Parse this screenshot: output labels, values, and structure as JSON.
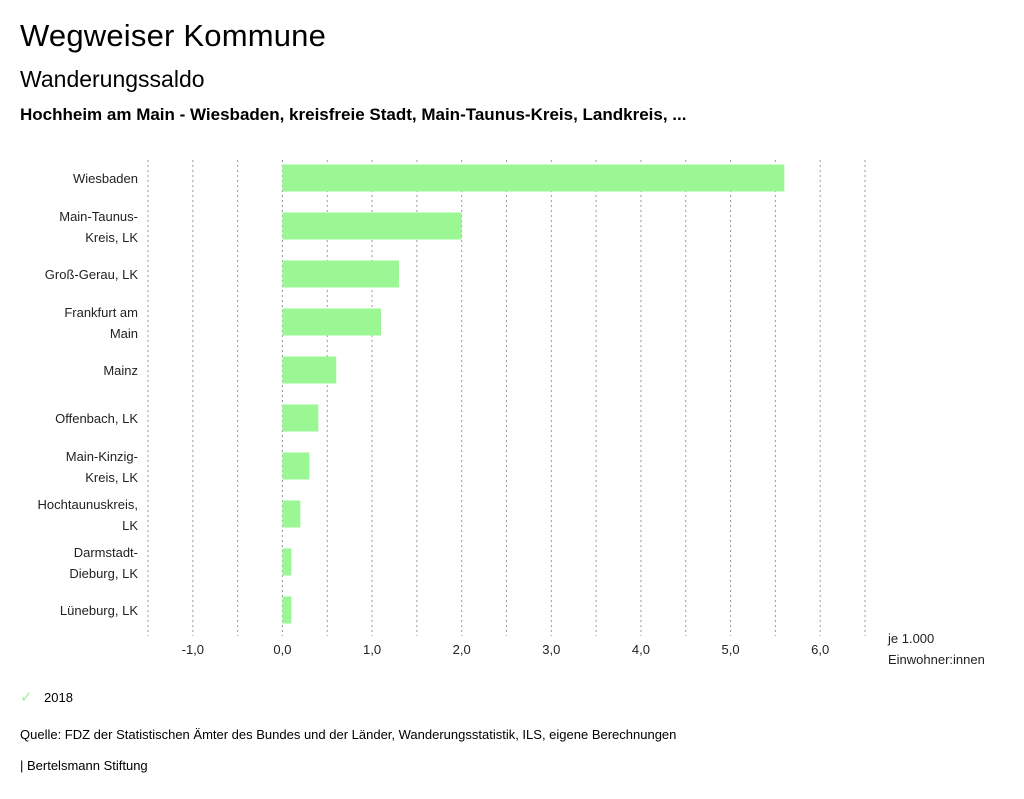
{
  "header": {
    "title": "Wegweiser Kommune",
    "subtitle": "Wanderungssaldo",
    "region": "Hochheim am Main - Wiesbaden, kreisfreie Stadt, Main-Taunus-Kreis, Landkreis, ..."
  },
  "chart_data": {
    "type": "bar",
    "orientation": "horizontal",
    "categories": [
      [
        "Wiesbaden"
      ],
      [
        "Main-Taunus-",
        "Kreis, LK"
      ],
      [
        "Groß-Gerau, LK"
      ],
      [
        "Frankfurt am",
        "Main"
      ],
      [
        "Mainz"
      ],
      [
        "Offenbach, LK"
      ],
      [
        "Main-Kinzig-",
        "Kreis, LK"
      ],
      [
        "Hochtaunuskreis,",
        "LK"
      ],
      [
        "Darmstadt-",
        "Dieburg, LK"
      ],
      [
        "Lüneburg, LK"
      ]
    ],
    "series": [
      {
        "name": "2018",
        "values": [
          5.6,
          2.0,
          1.3,
          1.1,
          0.6,
          0.4,
          0.3,
          0.2,
          0.1,
          0.1
        ]
      }
    ],
    "xlim": [
      -1.5,
      6.5
    ],
    "xticks": [
      -1.0,
      0.0,
      1.0,
      2.0,
      3.0,
      4.0,
      5.0,
      6.0
    ],
    "xtick_labels": [
      "-1,0",
      "0,0",
      "1,0",
      "2,0",
      "3,0",
      "4,0",
      "5,0",
      "6,0"
    ],
    "unit_label": [
      "je 1.000",
      "Einwohner:innen"
    ],
    "color": "#9af794",
    "grid": "dotted-vertical"
  },
  "legend": {
    "symbol": "✓",
    "label": "2018"
  },
  "source": "Quelle: FDZ der Statistischen Ämter des Bundes und der Länder, Wanderungsstatistik, ILS, eigene Berechnungen",
  "footer": "| Bertelsmann Stiftung"
}
